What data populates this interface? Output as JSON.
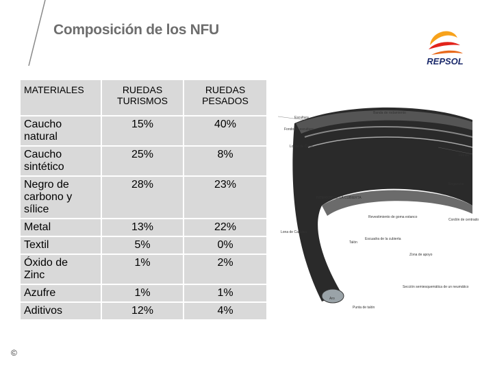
{
  "header": {
    "title": "Composición de los NFU",
    "logo": "REPSOL"
  },
  "table": {
    "columns": [
      "MATERIALES",
      "RUEDAS TURISMOS",
      "RUEDAS PESADOS"
    ],
    "rows": [
      [
        "Caucho natural",
        "15%",
        "40%"
      ],
      [
        "Caucho sintético",
        "25%",
        "8%"
      ],
      [
        "Negro de carbono y sílice",
        "28%",
        "23%"
      ],
      [
        "Metal",
        "13%",
        "22%"
      ],
      [
        "Textil",
        "5%",
        "0%"
      ],
      [
        "Óxido de Zinc",
        "1%",
        "2%"
      ],
      [
        "Azufre",
        "1%",
        "1%"
      ],
      [
        "Aditivos",
        "12%",
        "4%"
      ]
    ]
  },
  "figure": {
    "labels": [
      "Banda de rodamiento",
      "Escultura",
      "Fondo de escultura",
      "Lonas de Cima",
      "Flanco",
      "INTERIOR DE LA CUBIERTA",
      "Enganche",
      "Cordón de centrado",
      "Revestimiento de goma estanco",
      "Lona de Carcasa",
      "Talón",
      "Escuadra de la cubierta",
      "Zona de apoyo",
      "Aro",
      "Punta de talón",
      "Sección semiesquemática de un neumático"
    ]
  },
  "footer": {
    "copyright": "©"
  }
}
